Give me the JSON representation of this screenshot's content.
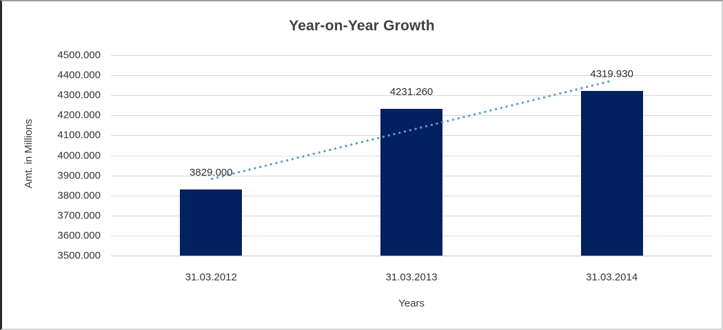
{
  "chart_data": {
    "type": "bar",
    "title": "Year-on-Year Growth",
    "xlabel": "Years",
    "ylabel": "Amt. in Millions",
    "categories": [
      "31.03.2012",
      "31.03.2013",
      "31.03.2014"
    ],
    "values": [
      3829.0,
      4231.26,
      4319.93
    ],
    "data_labels": [
      "3829.000",
      "4231.260",
      "4319.930"
    ],
    "ylim": [
      3500,
      4500
    ],
    "ytick_step": 100,
    "ytick_labels": [
      "3500.000",
      "3600.000",
      "3700.000",
      "3800.000",
      "3900.000",
      "4000.000",
      "4100.000",
      "4200.000",
      "4300.000",
      "4400.000",
      "4500.000"
    ],
    "grid": true,
    "legend": false,
    "trendline": {
      "type": "linear",
      "style": "dotted",
      "start_value": 3882,
      "end_value": 4372
    },
    "colors": {
      "bar": "#02215e",
      "trendline": "#5b9bd5",
      "gridline": "#d9d9d9",
      "title": "#404040",
      "tick_label": "#333333",
      "data_label": "#2e2e2e",
      "background": "#ffffff"
    }
  }
}
